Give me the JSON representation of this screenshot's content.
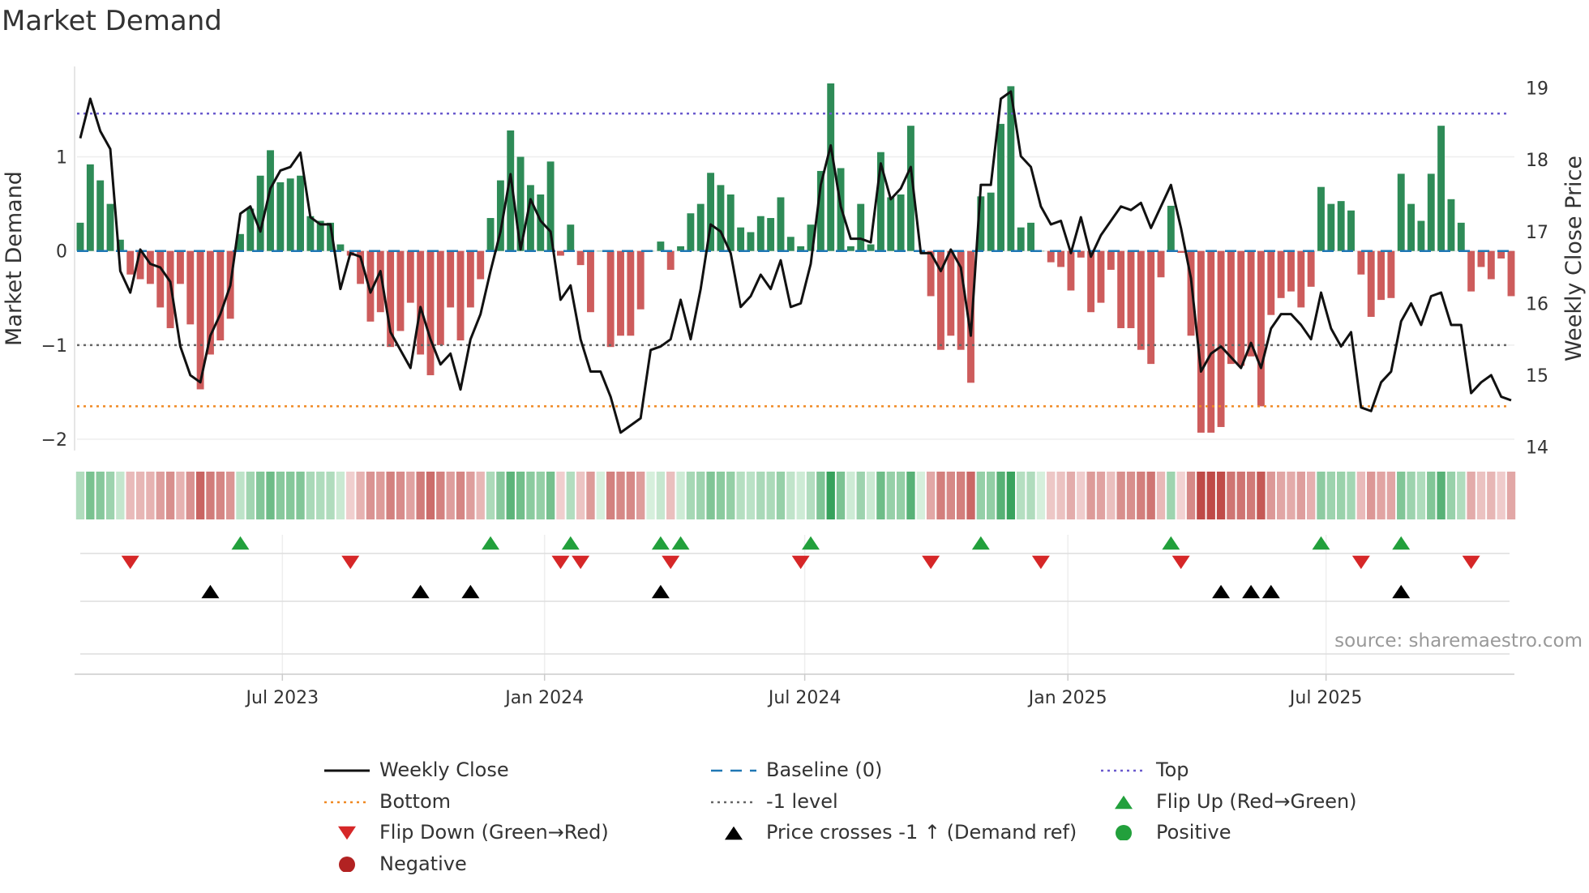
{
  "title": "Market Demand",
  "source": "source: sharemaestro.com",
  "chart_data": {
    "type": "bar",
    "title": "Market Demand",
    "ylabel": "Market Demand",
    "y2label": "Weekly Close Price",
    "ylim": [
      -2.12,
      1.96
    ],
    "y2lim": [
      13.95,
      19.3
    ],
    "yticks": [
      {
        "v": 1,
        "label": "1"
      },
      {
        "v": 0,
        "label": "0"
      },
      {
        "v": -1,
        "label": "−1"
      },
      {
        "v": -2,
        "label": "−2"
      }
    ],
    "y2ticks": [
      {
        "v": 14,
        "label": "14"
      },
      {
        "v": 15,
        "label": "15"
      },
      {
        "v": 16,
        "label": "16"
      },
      {
        "v": 17,
        "label": "17"
      },
      {
        "v": 18,
        "label": "18"
      },
      {
        "v": 19,
        "label": "19"
      }
    ],
    "xticks": [
      {
        "week": 20.2,
        "label": "Jul 2023"
      },
      {
        "week": 46.4,
        "label": "Jan 2024"
      },
      {
        "week": 72.4,
        "label": "Jul 2024"
      },
      {
        "week": 98.7,
        "label": "Jan 2025"
      },
      {
        "week": 124.5,
        "label": "Jul 2025"
      }
    ],
    "levels": {
      "top": 1.46,
      "baseline": 0,
      "minus_one": -1,
      "bottom": -1.65
    },
    "demand": [
      0.3,
      0.92,
      0.75,
      0.5,
      0.12,
      -0.25,
      -0.3,
      -0.35,
      -0.6,
      -0.82,
      -0.35,
      -0.78,
      -1.47,
      -1.1,
      -0.95,
      -0.72,
      0.18,
      0.45,
      0.8,
      1.07,
      0.73,
      0.77,
      0.8,
      0.37,
      0.32,
      0.3,
      0.07,
      -0.05,
      -0.35,
      -0.75,
      -0.65,
      -1.02,
      -0.85,
      -0.55,
      -1.1,
      -1.32,
      -1.0,
      -0.6,
      -0.95,
      -0.6,
      -0.3,
      0.35,
      0.75,
      1.28,
      1.0,
      0.7,
      0.6,
      0.95,
      -0.05,
      0.28,
      -0.15,
      -0.65,
      0.0,
      -1.02,
      -0.9,
      -0.9,
      -0.62,
      0.0,
      0.1,
      -0.2,
      0.05,
      0.4,
      0.5,
      0.83,
      0.7,
      0.6,
      0.25,
      0.2,
      0.37,
      0.35,
      0.57,
      0.15,
      0.05,
      0.28,
      0.85,
      1.78,
      0.88,
      0.05,
      0.5,
      0.07,
      1.05,
      0.57,
      0.6,
      1.33,
      0.0,
      -0.48,
      -1.05,
      -0.9,
      -1.05,
      -1.4,
      0.58,
      0.62,
      1.35,
      1.75,
      0.25,
      0.3,
      0.0,
      -0.12,
      -0.17,
      -0.42,
      -0.07,
      -0.65,
      -0.55,
      -0.2,
      -0.82,
      -0.82,
      -1.05,
      -1.2,
      -0.28,
      0.48,
      -0.02,
      -0.9,
      -1.93,
      -1.93,
      -1.87,
      -1.2,
      -1.22,
      -1.12,
      -1.65,
      -0.68,
      -0.5,
      -0.43,
      -0.6,
      -0.38,
      0.68,
      0.5,
      0.53,
      0.43,
      -0.25,
      -0.7,
      -0.52,
      -0.5,
      0.82,
      0.5,
      0.32,
      0.82,
      1.33,
      0.55,
      0.3,
      -0.43,
      -0.17,
      -0.3,
      -0.08,
      -0.48
    ],
    "weekly_close": [
      18.3,
      18.85,
      18.4,
      18.15,
      16.45,
      16.15,
      16.75,
      16.55,
      16.5,
      16.3,
      15.4,
      15.0,
      14.9,
      15.55,
      15.85,
      16.25,
      17.25,
      17.35,
      17.0,
      17.6,
      17.85,
      17.9,
      18.1,
      17.2,
      17.1,
      17.1,
      16.2,
      16.7,
      16.65,
      16.15,
      16.45,
      15.6,
      15.35,
      15.1,
      15.95,
      15.5,
      15.15,
      15.3,
      14.8,
      15.5,
      15.85,
      16.45,
      17.0,
      17.8,
      16.75,
      17.45,
      17.15,
      17.0,
      16.05,
      16.25,
      15.5,
      15.05,
      15.05,
      14.7,
      14.2,
      14.3,
      14.4,
      15.35,
      15.4,
      15.5,
      16.05,
      15.5,
      16.2,
      17.1,
      17.0,
      16.7,
      15.95,
      16.1,
      16.4,
      16.2,
      16.6,
      15.95,
      16.0,
      16.55,
      17.65,
      18.2,
      17.35,
      16.9,
      16.9,
      16.85,
      17.95,
      17.45,
      17.6,
      17.9,
      16.7,
      16.7,
      16.45,
      16.75,
      16.5,
      15.55,
      17.65,
      17.65,
      18.85,
      18.95,
      18.05,
      17.9,
      17.35,
      17.1,
      17.15,
      16.7,
      17.2,
      16.65,
      16.95,
      17.15,
      17.35,
      17.3,
      17.4,
      17.05,
      17.35,
      17.65,
      17.05,
      16.35,
      15.05,
      15.3,
      15.4,
      15.25,
      15.1,
      15.45,
      15.1,
      15.65,
      15.85,
      15.85,
      15.7,
      15.5,
      16.15,
      15.65,
      15.4,
      15.6,
      14.55,
      14.5,
      14.9,
      15.05,
      15.75,
      16.0,
      15.7,
      16.1,
      16.15,
      15.7,
      15.7,
      14.75,
      14.9,
      15.0,
      14.7,
      14.65
    ],
    "flip_up_weeks": [
      16,
      41,
      49,
      58,
      60,
      73,
      90,
      109,
      124,
      132
    ],
    "flip_down_weeks": [
      5,
      27,
      48,
      50,
      59,
      72,
      85,
      96,
      110,
      128,
      139
    ],
    "price_cross_weeks": [
      13,
      34,
      39,
      58,
      114,
      117,
      119,
      132
    ],
    "legend": [
      {
        "key": "close",
        "label": "Weekly Close"
      },
      {
        "key": "baseline",
        "label": "Baseline (0)"
      },
      {
        "key": "top",
        "label": "Top"
      },
      {
        "key": "bottom",
        "label": "Bottom"
      },
      {
        "key": "m1",
        "label": "-1 level"
      },
      {
        "key": "flipup",
        "label": "Flip Up (Red→Green)"
      },
      {
        "key": "flipdown",
        "label": "Flip Down (Green→Red)"
      },
      {
        "key": "cross",
        "label": "Price crosses -1 ↑ (Demand ref)"
      },
      {
        "key": "pos",
        "label": "Positive"
      },
      {
        "key": "neg",
        "label": "Negative"
      }
    ],
    "colors": {
      "positive": "#2e8b57",
      "negative": "#cd5c5c",
      "close": "#111111",
      "top": "#6a5acd",
      "bottom": "#f08a24",
      "minus_one": "#666666",
      "baseline": "#1f77b4",
      "flip_up": "#22a03c",
      "flip_down": "#d62728",
      "cross": "#000000",
      "pos_dot": "#22a03c",
      "neg_dot": "#b22222"
    }
  }
}
